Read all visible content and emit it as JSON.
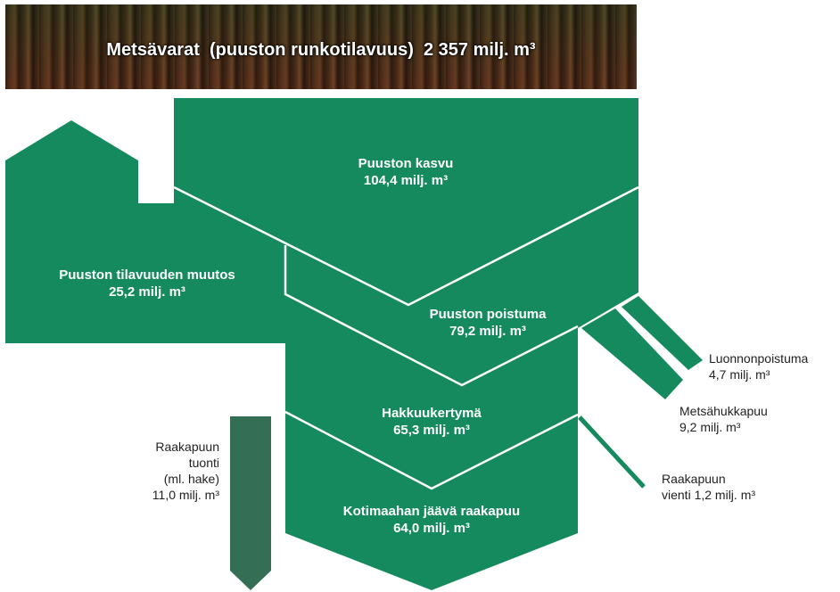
{
  "header": {
    "title": "Metsävarat  (puuston runkotilavuus)  2 357 milj. m³"
  },
  "nodes": [
    {
      "lines": [
        "Puuston kasvu",
        "104,4 milj. m³"
      ]
    },
    {
      "lines": [
        "Puuston tilavuuden muutos",
        "25,2 milj. m³"
      ]
    },
    {
      "lines": [
        "Puuston poistuma",
        "79,2 milj. m³"
      ]
    },
    {
      "lines": [
        "Hakkuukertymä",
        "65,3 milj. m³"
      ]
    },
    {
      "lines": [
        "Kotimaahan jäävä raakapuu",
        "64,0 milj. m³"
      ]
    },
    {
      "lines": [
        "Luonnonpoistuma",
        "4,7 milj. m³"
      ]
    },
    {
      "lines": [
        "Metsähukkapuu",
        "9,2 milj. m³"
      ]
    },
    {
      "lines": [
        "Raakapuun",
        "vienti 1,2 milj. m³"
      ]
    },
    {
      "lines": [
        "Raakapuun",
        "tuonti",
        "(ml. hake)",
        "11,0 milj. m³"
      ]
    }
  ]
}
